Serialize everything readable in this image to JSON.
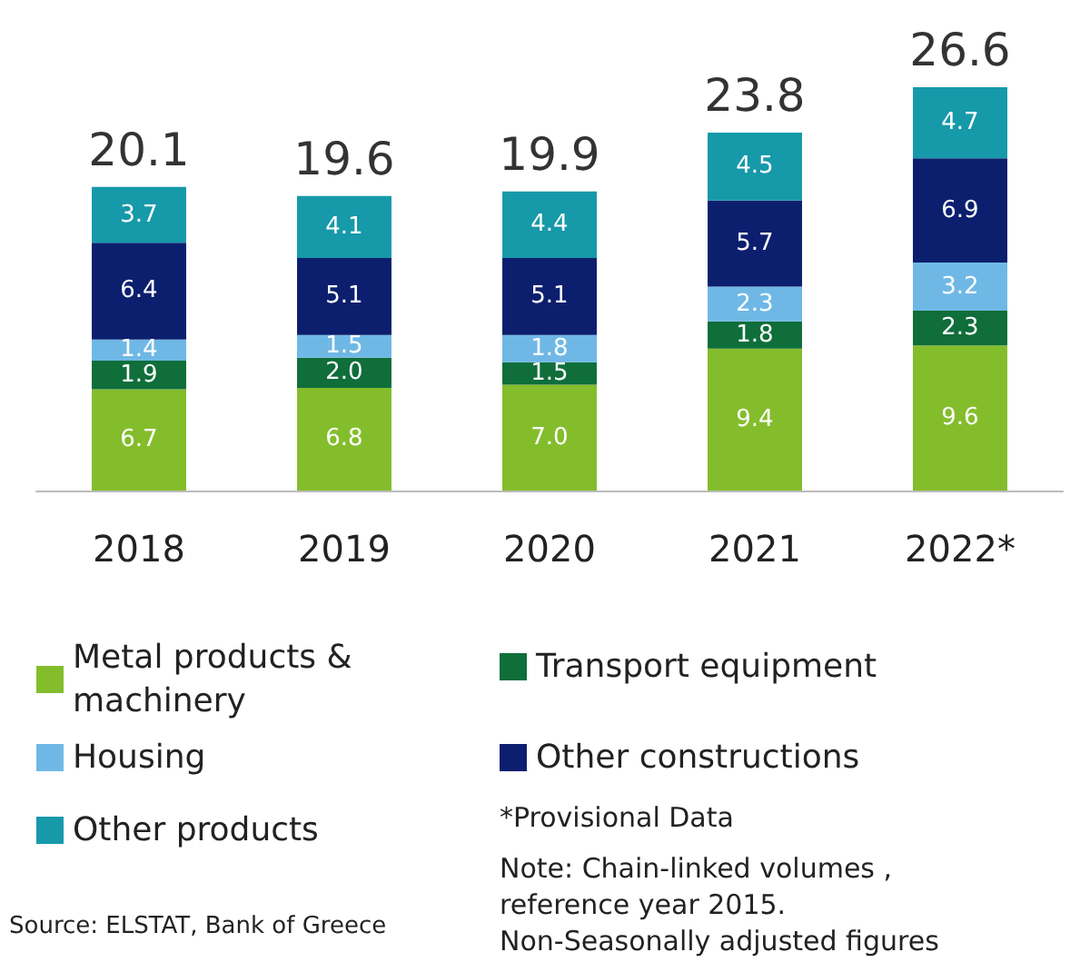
{
  "chart_data": {
    "type": "bar",
    "stacked": true,
    "legend": "bottom",
    "categories": [
      "2018",
      "2019",
      "2020",
      "2021",
      "2022*"
    ],
    "series": [
      {
        "name": "Metal products & machinery",
        "color": "#84bd2c",
        "values": [
          6.7,
          6.8,
          7.0,
          9.4,
          9.6
        ],
        "value_labels": [
          "6.7",
          "6.8",
          "7.0",
          "9.4",
          "9.6"
        ]
      },
      {
        "name": "Transport equipment",
        "color": "#0f6e3a",
        "values": [
          1.9,
          2.0,
          1.5,
          1.8,
          2.3
        ],
        "value_labels": [
          "1.9",
          "2.0",
          "1.5",
          "1.8",
          "2.3"
        ]
      },
      {
        "name": "Housing",
        "color": "#6fb8e6",
        "values": [
          1.4,
          1.5,
          1.8,
          2.3,
          3.2
        ],
        "value_labels": [
          "1.4",
          "1.5",
          "1.8",
          "2.3",
          "3.2"
        ]
      },
      {
        "name": "Other constructions",
        "color": "#0c1f6e",
        "values": [
          6.4,
          5.1,
          5.1,
          5.7,
          6.9
        ],
        "value_labels": [
          "6.4",
          "5.1",
          "5.1",
          "5.7",
          "6.9"
        ]
      },
      {
        "name": "Other products",
        "color": "#1699a9",
        "values": [
          3.7,
          4.1,
          4.4,
          4.5,
          4.7
        ],
        "value_labels": [
          "3.7",
          "4.1",
          "4.4",
          "4.5",
          "4.7"
        ]
      }
    ],
    "totals": [
      "20.1",
      "19.6",
      "19.9",
      "23.8",
      "26.6"
    ],
    "annotations": [
      "*Provisional Data",
      "Note: Chain-linked volumes , reference year 2015. Non-Seasonally adjusted figures",
      "Source: ELSTAT, Bank of Greece"
    ]
  }
}
